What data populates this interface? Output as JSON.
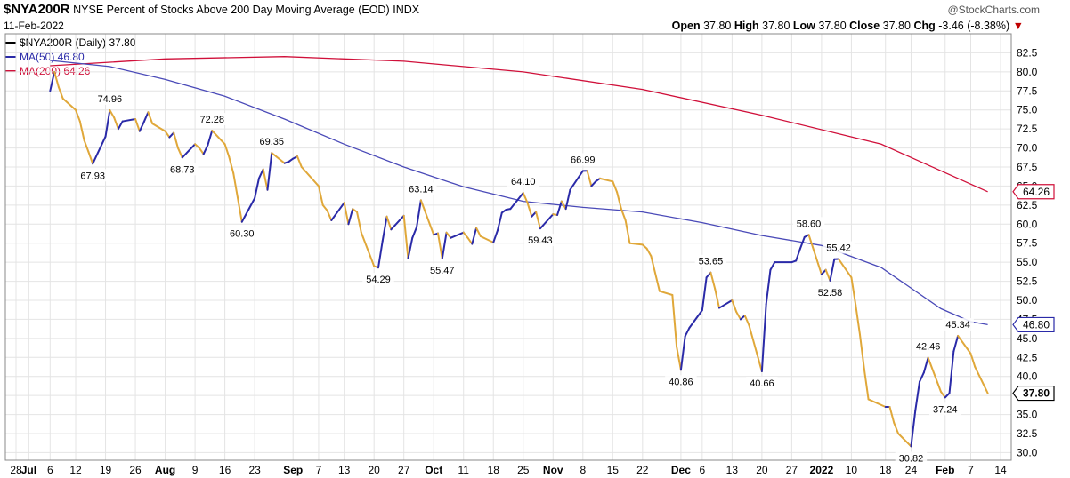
{
  "header": {
    "symbol": "$NYA200R",
    "description": "NYSE Percent of Stocks Above 200 Day Moving Average (EOD)",
    "exchange": "INDX",
    "date": "11-Feb-2022",
    "credit": "@StockCharts.com"
  },
  "ohlc": {
    "open_label": "Open",
    "open": "37.80",
    "high_label": "High",
    "high": "37.80",
    "low_label": "Low",
    "low": "37.80",
    "close_label": "Close",
    "close": "37.80",
    "chg_label": "Chg",
    "chg": "-3.46 (-8.38%)",
    "chg_arrow": "▼"
  },
  "legend": [
    {
      "text": "$NYA200R (Daily) 37.80",
      "color": "#000000"
    },
    {
      "text": "MA(50) 46.80",
      "color": "#2a2aa8"
    },
    {
      "text": "MA(200) 64.26",
      "color": "#d0103a"
    }
  ],
  "colors": {
    "up": "#2a2aa8",
    "down": "#e0a83a",
    "ma50": "#4a4ab8",
    "ma200": "#d0103a",
    "grid": "#e4e4e4"
  },
  "chart_data": {
    "type": "line",
    "title": "NYSE Percent of Stocks Above 200 Day Moving Average (EOD)",
    "ylim": [
      29,
      85
    ],
    "yticks": [
      30.0,
      32.5,
      35.0,
      37.5,
      40.0,
      42.5,
      45.0,
      47.5,
      50.0,
      52.5,
      55.0,
      57.5,
      60.0,
      62.5,
      65.0,
      67.5,
      70.0,
      72.5,
      75.0,
      77.5,
      80.0,
      82.5
    ],
    "xlim": [
      "2021-06-28",
      "2022-02-14"
    ],
    "xticks": [
      {
        "label": "28",
        "date": "2021-06-28"
      },
      {
        "label": "Jul",
        "date": "2021-07-01",
        "bold": true
      },
      {
        "label": "6",
        "date": "2021-07-06"
      },
      {
        "label": "12",
        "date": "2021-07-12"
      },
      {
        "label": "19",
        "date": "2021-07-19"
      },
      {
        "label": "26",
        "date": "2021-07-26"
      },
      {
        "label": "Aug",
        "date": "2021-08-02",
        "bold": true
      },
      {
        "label": "9",
        "date": "2021-08-09"
      },
      {
        "label": "16",
        "date": "2021-08-16"
      },
      {
        "label": "23",
        "date": "2021-08-23"
      },
      {
        "label": "Sep",
        "date": "2021-09-01",
        "bold": true
      },
      {
        "label": "7",
        "date": "2021-09-07"
      },
      {
        "label": "13",
        "date": "2021-09-13"
      },
      {
        "label": "20",
        "date": "2021-09-20"
      },
      {
        "label": "27",
        "date": "2021-09-27"
      },
      {
        "label": "Oct",
        "date": "2021-10-04",
        "bold": true
      },
      {
        "label": "11",
        "date": "2021-10-11"
      },
      {
        "label": "18",
        "date": "2021-10-18"
      },
      {
        "label": "25",
        "date": "2021-10-25"
      },
      {
        "label": "Nov",
        "date": "2021-11-01",
        "bold": true
      },
      {
        "label": "8",
        "date": "2021-11-08"
      },
      {
        "label": "15",
        "date": "2021-11-15"
      },
      {
        "label": "22",
        "date": "2021-11-22"
      },
      {
        "label": "Dec",
        "date": "2021-12-01",
        "bold": true
      },
      {
        "label": "6",
        "date": "2021-12-06"
      },
      {
        "label": "13",
        "date": "2021-12-13"
      },
      {
        "label": "20",
        "date": "2021-12-20"
      },
      {
        "label": "27",
        "date": "2021-12-27"
      },
      {
        "label": "2022",
        "date": "2022-01-03",
        "bold": true
      },
      {
        "label": "10",
        "date": "2022-01-10"
      },
      {
        "label": "18",
        "date": "2022-01-18"
      },
      {
        "label": "24",
        "date": "2022-01-24"
      },
      {
        "label": "Feb",
        "date": "2022-02-01",
        "bold": true
      },
      {
        "label": "7",
        "date": "2022-02-07"
      },
      {
        "label": "14",
        "date": "2022-02-14"
      }
    ],
    "series": [
      {
        "name": "$NYA200R (Daily)",
        "points": [
          [
            "2021-07-06",
            77.5
          ],
          [
            "2021-07-07",
            80.0
          ],
          [
            "2021-07-08",
            78.0
          ],
          [
            "2021-07-09",
            76.5
          ],
          [
            "2021-07-12",
            75.0
          ],
          [
            "2021-07-13",
            73.5
          ],
          [
            "2021-07-14",
            71.0
          ],
          [
            "2021-07-15",
            69.5
          ],
          [
            "2021-07-16",
            67.93
          ],
          [
            "2021-07-19",
            71.5
          ],
          [
            "2021-07-20",
            74.96
          ],
          [
            "2021-07-21",
            74.0
          ],
          [
            "2021-07-22",
            72.5
          ],
          [
            "2021-07-23",
            73.5
          ],
          [
            "2021-07-26",
            73.8
          ],
          [
            "2021-07-27",
            72.2
          ],
          [
            "2021-07-28",
            73.4
          ],
          [
            "2021-07-29",
            74.7
          ],
          [
            "2021-07-30",
            73.2
          ],
          [
            "2021-08-02",
            72.2
          ],
          [
            "2021-08-03",
            71.4
          ],
          [
            "2021-08-04",
            72.0
          ],
          [
            "2021-08-05",
            70.0
          ],
          [
            "2021-08-06",
            68.73
          ],
          [
            "2021-08-09",
            70.5
          ],
          [
            "2021-08-10",
            70.0
          ],
          [
            "2021-08-11",
            69.2
          ],
          [
            "2021-08-12",
            70.4
          ],
          [
            "2021-08-13",
            72.28
          ],
          [
            "2021-08-16",
            70.5
          ],
          [
            "2021-08-17",
            68.8
          ],
          [
            "2021-08-18",
            66.7
          ],
          [
            "2021-08-19",
            63.5
          ],
          [
            "2021-08-20",
            60.3
          ],
          [
            "2021-08-23",
            63.4
          ],
          [
            "2021-08-24",
            66.0
          ],
          [
            "2021-08-25",
            67.2
          ],
          [
            "2021-08-26",
            64.5
          ],
          [
            "2021-08-27",
            69.35
          ],
          [
            "2021-08-30",
            68.0
          ],
          [
            "2021-08-31",
            68.2
          ],
          [
            "2021-09-01",
            68.6
          ],
          [
            "2021-09-02",
            68.9
          ],
          [
            "2021-09-03",
            67.5
          ],
          [
            "2021-09-07",
            65.0
          ],
          [
            "2021-09-08",
            62.5
          ],
          [
            "2021-09-09",
            61.8
          ],
          [
            "2021-09-10",
            60.5
          ],
          [
            "2021-09-13",
            62.8
          ],
          [
            "2021-09-14",
            60.0
          ],
          [
            "2021-09-15",
            62.0
          ],
          [
            "2021-09-16",
            61.6
          ],
          [
            "2021-09-17",
            58.9
          ],
          [
            "2021-09-20",
            54.5
          ],
          [
            "2021-09-21",
            54.29
          ],
          [
            "2021-09-22",
            57.8
          ],
          [
            "2021-09-23",
            61.0
          ],
          [
            "2021-09-24",
            59.3
          ],
          [
            "2021-09-27",
            61.1
          ],
          [
            "2021-09-28",
            55.5
          ],
          [
            "2021-09-29",
            58.2
          ],
          [
            "2021-09-30",
            59.6
          ],
          [
            "2021-10-01",
            63.14
          ],
          [
            "2021-10-04",
            58.6
          ],
          [
            "2021-10-05",
            58.8
          ],
          [
            "2021-10-06",
            55.47
          ],
          [
            "2021-10-07",
            58.9
          ],
          [
            "2021-10-08",
            58.2
          ],
          [
            "2021-10-11",
            58.9
          ],
          [
            "2021-10-12",
            58.2
          ],
          [
            "2021-10-13",
            57.4
          ],
          [
            "2021-10-14",
            59.5
          ],
          [
            "2021-10-15",
            58.4
          ],
          [
            "2021-10-18",
            57.6
          ],
          [
            "2021-10-19",
            59.2
          ],
          [
            "2021-10-20",
            61.5
          ],
          [
            "2021-10-21",
            61.9
          ],
          [
            "2021-10-22",
            62.0
          ],
          [
            "2021-10-25",
            64.1
          ],
          [
            "2021-10-26",
            62.8
          ],
          [
            "2021-10-27",
            61.0
          ],
          [
            "2021-10-28",
            61.6
          ],
          [
            "2021-10-29",
            59.43
          ],
          [
            "2021-11-01",
            61.3
          ],
          [
            "2021-11-02",
            61.2
          ],
          [
            "2021-11-03",
            63.0
          ],
          [
            "2021-11-04",
            62.0
          ],
          [
            "2021-11-05",
            64.5
          ],
          [
            "2021-11-08",
            66.99
          ],
          [
            "2021-11-09",
            67.0
          ],
          [
            "2021-11-10",
            65.0
          ],
          [
            "2021-11-11",
            65.6
          ],
          [
            "2021-11-12",
            66.0
          ],
          [
            "2021-11-15",
            65.6
          ],
          [
            "2021-11-16",
            64.2
          ],
          [
            "2021-11-17",
            62.0
          ],
          [
            "2021-11-18",
            60.5
          ],
          [
            "2021-11-19",
            57.5
          ],
          [
            "2021-11-22",
            57.3
          ],
          [
            "2021-11-23",
            56.8
          ],
          [
            "2021-11-24",
            55.8
          ],
          [
            "2021-11-26",
            51.2
          ],
          [
            "2021-11-29",
            50.7
          ],
          [
            "2021-11-30",
            43.9
          ],
          [
            "2021-12-01",
            40.86
          ],
          [
            "2021-12-02",
            45.3
          ],
          [
            "2021-12-03",
            46.4
          ],
          [
            "2021-12-06",
            48.7
          ],
          [
            "2021-12-07",
            53.0
          ],
          [
            "2021-12-08",
            53.65
          ],
          [
            "2021-12-09",
            51.5
          ],
          [
            "2021-12-10",
            49.0
          ],
          [
            "2021-12-13",
            50.0
          ],
          [
            "2021-12-14",
            48.5
          ],
          [
            "2021-12-15",
            47.5
          ],
          [
            "2021-12-16",
            48.0
          ],
          [
            "2021-12-17",
            46.7
          ],
          [
            "2021-12-20",
            40.66
          ],
          [
            "2021-12-21",
            49.5
          ],
          [
            "2021-12-22",
            54.0
          ],
          [
            "2021-12-23",
            55.0
          ],
          [
            "2021-12-27",
            55.0
          ],
          [
            "2021-12-28",
            55.2
          ],
          [
            "2021-12-29",
            56.8
          ],
          [
            "2021-12-30",
            58.3
          ],
          [
            "2021-12-31",
            58.6
          ],
          [
            "2022-01-03",
            53.4
          ],
          [
            "2022-01-04",
            54.0
          ],
          [
            "2022-01-05",
            52.58
          ],
          [
            "2022-01-06",
            55.4
          ],
          [
            "2022-01-07",
            55.42
          ],
          [
            "2022-01-10",
            53.0
          ],
          [
            "2022-01-11",
            49.4
          ],
          [
            "2022-01-12",
            45.5
          ],
          [
            "2022-01-13",
            41.0
          ],
          [
            "2022-01-14",
            37.0
          ],
          [
            "2022-01-18",
            36.0
          ],
          [
            "2022-01-19",
            36.0
          ],
          [
            "2022-01-20",
            33.9
          ],
          [
            "2022-01-21",
            32.5
          ],
          [
            "2022-01-24",
            30.82
          ],
          [
            "2022-01-25",
            35.5
          ],
          [
            "2022-01-26",
            39.3
          ],
          [
            "2022-01-27",
            40.5
          ],
          [
            "2022-01-28",
            42.46
          ],
          [
            "2022-01-31",
            38.0
          ],
          [
            "2022-02-01",
            37.24
          ],
          [
            "2022-02-02",
            37.8
          ],
          [
            "2022-02-03",
            43.3
          ],
          [
            "2022-02-04",
            45.34
          ],
          [
            "2022-02-07",
            43.0
          ],
          [
            "2022-02-08",
            41.26
          ],
          [
            "2022-02-11",
            37.8
          ]
        ]
      },
      {
        "name": "MA(50)",
        "points": [
          [
            "2021-07-06",
            81.5
          ],
          [
            "2021-07-20",
            80.7
          ],
          [
            "2021-08-02",
            79.0
          ],
          [
            "2021-08-16",
            76.8
          ],
          [
            "2021-08-30",
            73.8
          ],
          [
            "2021-09-13",
            70.5
          ],
          [
            "2021-09-27",
            67.5
          ],
          [
            "2021-10-11",
            64.9
          ],
          [
            "2021-10-25",
            63.0
          ],
          [
            "2021-11-08",
            62.2
          ],
          [
            "2021-11-22",
            61.6
          ],
          [
            "2021-12-06",
            60.2
          ],
          [
            "2021-12-20",
            58.5
          ],
          [
            "2022-01-03",
            57.2
          ],
          [
            "2022-01-17",
            54.3
          ],
          [
            "2022-01-31",
            48.9
          ],
          [
            "2022-02-07",
            47.2
          ],
          [
            "2022-02-11",
            46.8
          ]
        ]
      },
      {
        "name": "MA(200)",
        "points": [
          [
            "2021-07-06",
            80.8
          ],
          [
            "2021-08-02",
            81.7
          ],
          [
            "2021-08-30",
            82.0
          ],
          [
            "2021-09-27",
            81.4
          ],
          [
            "2021-10-25",
            80.0
          ],
          [
            "2021-11-22",
            77.7
          ],
          [
            "2021-12-20",
            74.3
          ],
          [
            "2022-01-17",
            70.5
          ],
          [
            "2022-02-11",
            64.26
          ]
        ]
      }
    ],
    "data_labels": [
      {
        "date": "2021-07-16",
        "value": 67.93,
        "text": "67.93",
        "pos": "below"
      },
      {
        "date": "2021-07-20",
        "value": 74.96,
        "text": "74.96",
        "pos": "above"
      },
      {
        "date": "2021-08-06",
        "value": 68.73,
        "text": "68.73",
        "pos": "below"
      },
      {
        "date": "2021-08-13",
        "value": 72.28,
        "text": "72.28",
        "pos": "above"
      },
      {
        "date": "2021-08-20",
        "value": 60.3,
        "text": "60.30",
        "pos": "below"
      },
      {
        "date": "2021-08-27",
        "value": 69.35,
        "text": "69.35",
        "pos": "above"
      },
      {
        "date": "2021-09-21",
        "value": 54.29,
        "text": "54.29",
        "pos": "below"
      },
      {
        "date": "2021-10-01",
        "value": 63.14,
        "text": "63.14",
        "pos": "above"
      },
      {
        "date": "2021-10-06",
        "value": 55.47,
        "text": "55.47",
        "pos": "below"
      },
      {
        "date": "2021-10-25",
        "value": 64.1,
        "text": "64.10",
        "pos": "above"
      },
      {
        "date": "2021-10-29",
        "value": 59.43,
        "text": "59.43",
        "pos": "below"
      },
      {
        "date": "2021-11-08",
        "value": 66.99,
        "text": "66.99",
        "pos": "above"
      },
      {
        "date": "2021-12-01",
        "value": 40.86,
        "text": "40.86",
        "pos": "below"
      },
      {
        "date": "2021-12-08",
        "value": 53.65,
        "text": "53.65",
        "pos": "above"
      },
      {
        "date": "2021-12-20",
        "value": 40.66,
        "text": "40.66",
        "pos": "below"
      },
      {
        "date": "2021-12-31",
        "value": 58.6,
        "text": "58.60",
        "pos": "above"
      },
      {
        "date": "2022-01-05",
        "value": 52.58,
        "text": "52.58",
        "pos": "below"
      },
      {
        "date": "2022-01-07",
        "value": 55.42,
        "text": "55.42",
        "pos": "above"
      },
      {
        "date": "2022-01-24",
        "value": 30.82,
        "text": "30.82",
        "pos": "below"
      },
      {
        "date": "2022-01-28",
        "value": 42.46,
        "text": "42.46",
        "pos": "above"
      },
      {
        "date": "2022-02-01",
        "value": 37.24,
        "text": "37.24",
        "pos": "below"
      },
      {
        "date": "2022-02-04",
        "value": 45.34,
        "text": "45.34",
        "pos": "above"
      }
    ],
    "price_tags": [
      {
        "value": 64.26,
        "text": "64.26",
        "color": "#d0103a"
      },
      {
        "value": 46.8,
        "text": "46.80",
        "color": "#2a2aa8"
      },
      {
        "value": 37.8,
        "text": "37.80",
        "color": "#000000",
        "bold": true
      }
    ]
  }
}
